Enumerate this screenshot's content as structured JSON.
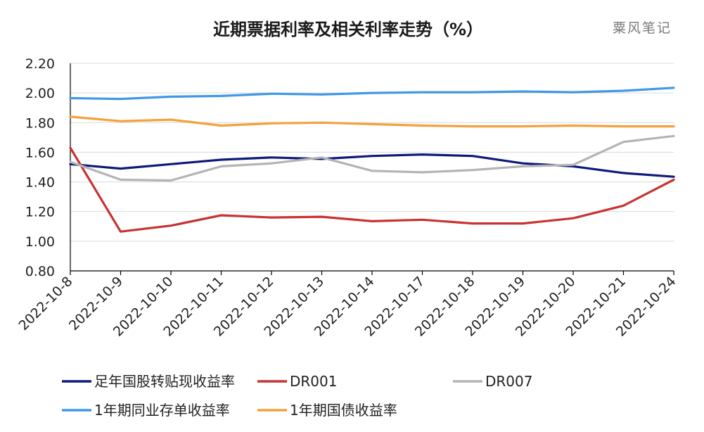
{
  "chart_data": {
    "type": "line",
    "title": "近期票据利率及相关利率走势（%）",
    "watermark": "粟风笔记",
    "categories": [
      "2022-10-8",
      "2022-10-9",
      "2022-10-10",
      "2022-10-11",
      "2022-10-12",
      "2022-10-13",
      "2022-10-14",
      "2022-10-17",
      "2022-10-18",
      "2022-10-19",
      "2022-10-20",
      "2022-10-21",
      "2022-10-24"
    ],
    "ylim": [
      0.8,
      2.2
    ],
    "yticks": [
      "0.80",
      "1.00",
      "1.20",
      "1.40",
      "1.60",
      "1.80",
      "2.00",
      "2.20"
    ],
    "grid": "horizontal",
    "legend_position": "bottom",
    "series": [
      {
        "name": "足年国股转贴现收益率",
        "color": "#0d1a7a",
        "values": [
          1.52,
          1.49,
          1.52,
          1.55,
          1.565,
          1.555,
          1.575,
          1.585,
          1.575,
          1.525,
          1.505,
          1.46,
          1.435
        ]
      },
      {
        "name": "DR001",
        "color": "#c83232",
        "values": [
          1.63,
          1.065,
          1.105,
          1.175,
          1.16,
          1.165,
          1.135,
          1.145,
          1.12,
          1.12,
          1.155,
          1.24,
          1.415
        ]
      },
      {
        "name": "DR007",
        "color": "#b4b4b4",
        "values": [
          1.535,
          1.415,
          1.41,
          1.505,
          1.525,
          1.565,
          1.475,
          1.465,
          1.48,
          1.505,
          1.515,
          1.67,
          1.71
        ]
      },
      {
        "name": "1年期同业存单收益率",
        "color": "#3f98e8",
        "values": [
          1.965,
          1.96,
          1.975,
          1.98,
          1.995,
          1.99,
          2.0,
          2.005,
          2.005,
          2.01,
          2.005,
          2.015,
          2.035
        ]
      },
      {
        "name": "1年期国债收益率",
        "color": "#f5a03c",
        "values": [
          1.84,
          1.81,
          1.82,
          1.78,
          1.795,
          1.8,
          1.79,
          1.78,
          1.775,
          1.775,
          1.78,
          1.775,
          1.775
        ]
      }
    ]
  }
}
